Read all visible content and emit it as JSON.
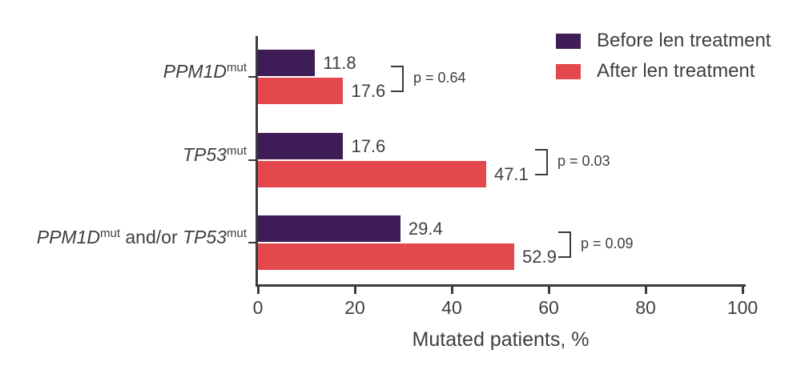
{
  "chart_data": {
    "type": "bar",
    "orientation": "horizontal",
    "xlabel": "Mutated patients, %",
    "xlim": [
      0,
      100
    ],
    "xticks": [
      0,
      20,
      40,
      60,
      80,
      100
    ],
    "grid": false,
    "legend_position": "top-right",
    "categories": [
      "PPM1Dmut",
      "TP53mut",
      "PPM1Dmut and/or TP53mut"
    ],
    "category_label_parts": [
      [
        {
          "text": "PPM1D",
          "style": "gene"
        },
        {
          "text": "mut",
          "style": "sup"
        }
      ],
      [
        {
          "text": "TP53",
          "style": "gene"
        },
        {
          "text": "mut",
          "style": "sup"
        }
      ],
      [
        {
          "text": "PPM1D",
          "style": "gene"
        },
        {
          "text": "mut",
          "style": "sup"
        },
        {
          "text": " and/or ",
          "style": "normal"
        },
        {
          "text": "TP53",
          "style": "gene"
        },
        {
          "text": "mut",
          "style": "sup"
        }
      ]
    ],
    "series": [
      {
        "name": "Before len treatment",
        "color": "#3E1C55",
        "values": [
          11.8,
          17.6,
          29.4
        ]
      },
      {
        "name": "After len treatment",
        "color": "#E2484C",
        "values": [
          17.6,
          47.1,
          52.9
        ]
      }
    ],
    "value_labels": [
      [
        "11.8",
        "17.6"
      ],
      [
        "17.6",
        "47.1"
      ],
      [
        "29.4",
        "52.9"
      ]
    ],
    "p_values": [
      "p = 0.64",
      "p = 0.03",
      "p = 0.09"
    ]
  },
  "colors": {
    "axis": "#3B3B3B",
    "text": "#3F3F3F"
  }
}
